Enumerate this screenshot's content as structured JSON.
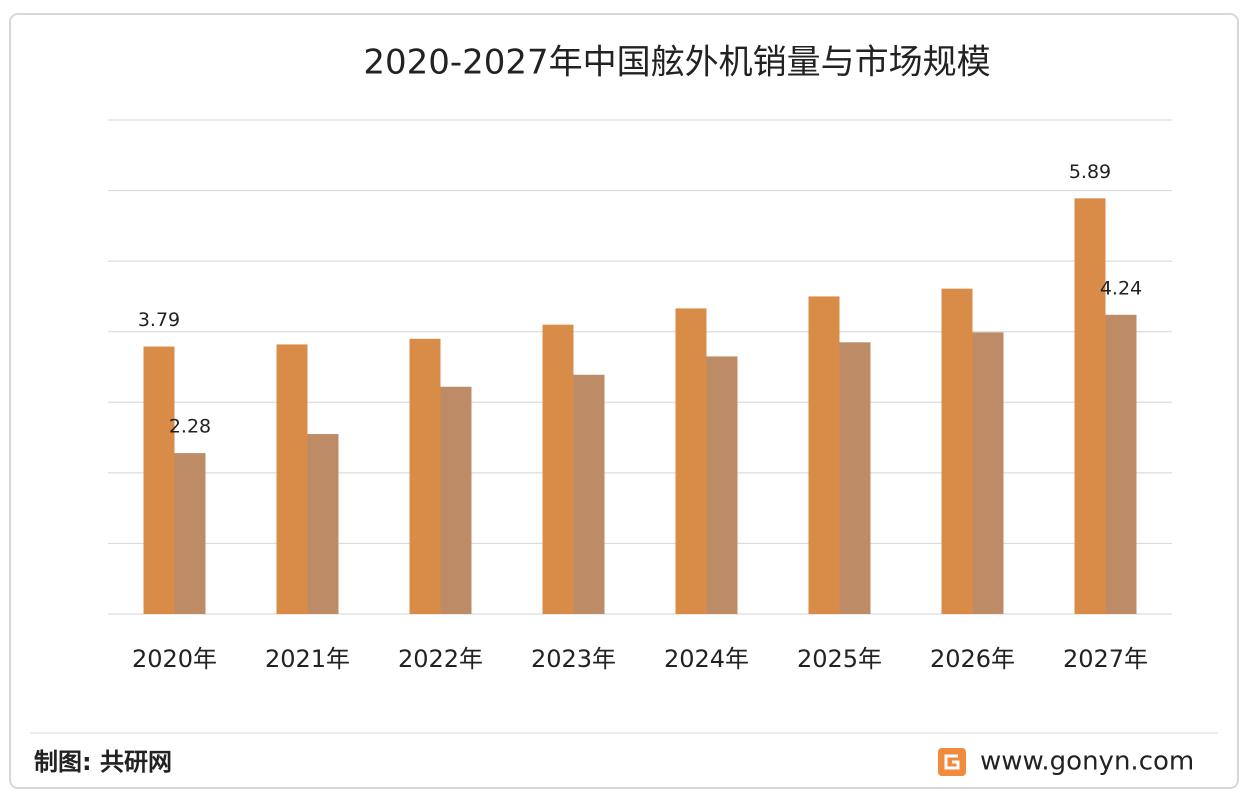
{
  "chart_data": {
    "type": "bar",
    "title": "2020-2027年中国舷外机销量与市场规模",
    "categories": [
      "2020年",
      "2021年",
      "2022年",
      "2023年",
      "2024年",
      "2025年",
      "2026年",
      "2027年"
    ],
    "series": [
      {
        "color": "#d98b48",
        "values": [
          3.79,
          3.82,
          3.9,
          4.1,
          4.33,
          4.5,
          4.61,
          5.89
        ],
        "value_labels": [
          "3.79",
          null,
          null,
          null,
          null,
          null,
          null,
          "5.89"
        ]
      },
      {
        "color": "#bd8c66",
        "values": [
          2.28,
          2.55,
          3.22,
          3.39,
          3.65,
          3.85,
          3.99,
          4.24
        ],
        "value_labels": [
          "2.28",
          null,
          null,
          null,
          null,
          null,
          null,
          "4.24"
        ]
      }
    ],
    "ylim": [
      0,
      7
    ],
    "yticks": [
      0,
      1,
      2,
      3,
      4,
      5,
      6,
      7
    ],
    "grid": true
  },
  "footer": {
    "source": "制图: 共研网",
    "site": "www.gonyn.com"
  }
}
